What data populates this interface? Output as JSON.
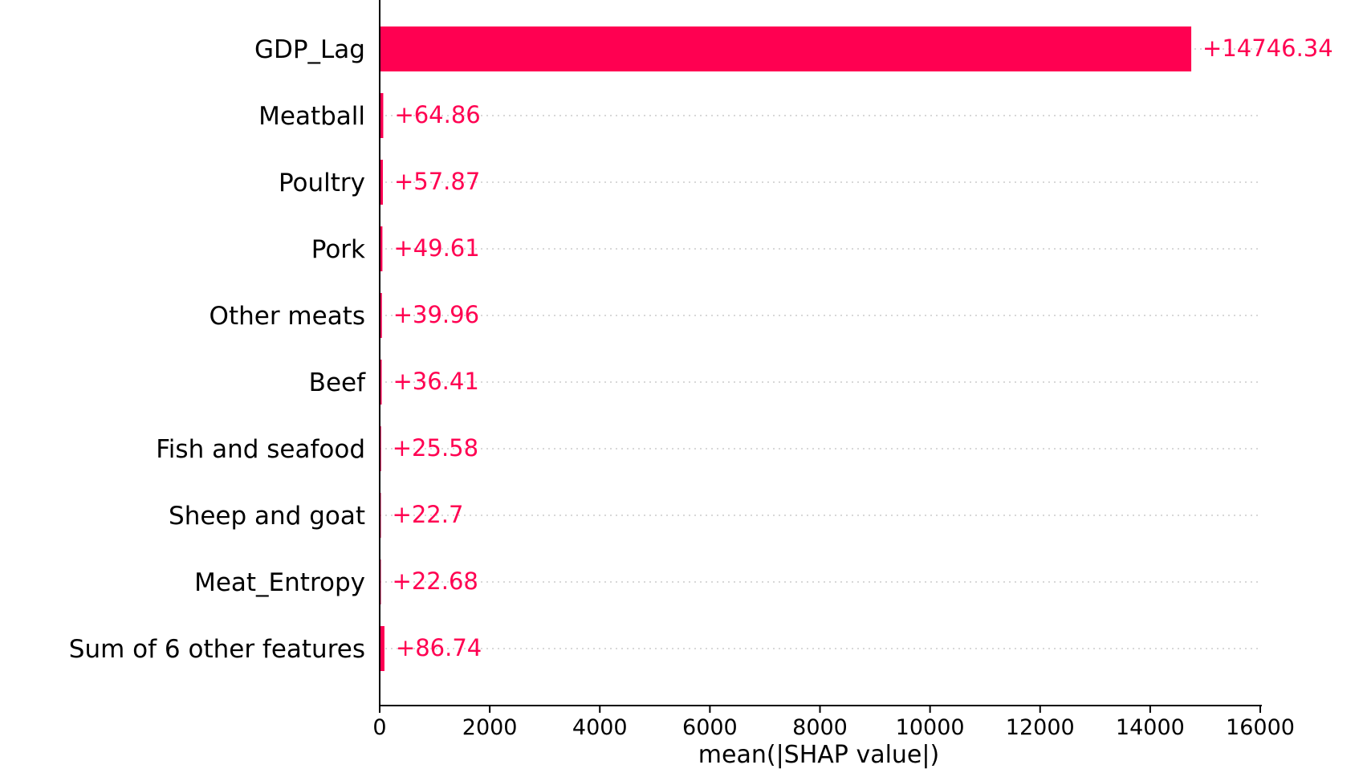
{
  "chart_data": {
    "type": "bar",
    "orientation": "horizontal",
    "title": "",
    "xlabel": "mean(|SHAP value|)",
    "ylabel": "",
    "xlim": [
      0,
      16000
    ],
    "xticks": [
      0,
      2000,
      4000,
      6000,
      8000,
      10000,
      12000,
      14000,
      16000
    ],
    "grid": "dotted horizontal row guides",
    "legend": "none",
    "bar_color": "#ff0051",
    "categories": [
      "GDP_Lag",
      "Meatball",
      "Poultry",
      "Pork",
      "Other meats",
      "Beef",
      "Fish and seafood",
      "Sheep and goat",
      "Meat_Entropy",
      "Sum of 6 other features"
    ],
    "values": [
      14746.34,
      64.86,
      57.87,
      49.61,
      39.96,
      36.41,
      25.58,
      22.7,
      22.68,
      86.74
    ],
    "value_labels": [
      "+14746.34",
      "+64.86",
      "+57.87",
      "+49.61",
      "+39.96",
      "+36.41",
      "+25.58",
      "+22.7",
      "+22.68",
      "+86.74"
    ]
  }
}
